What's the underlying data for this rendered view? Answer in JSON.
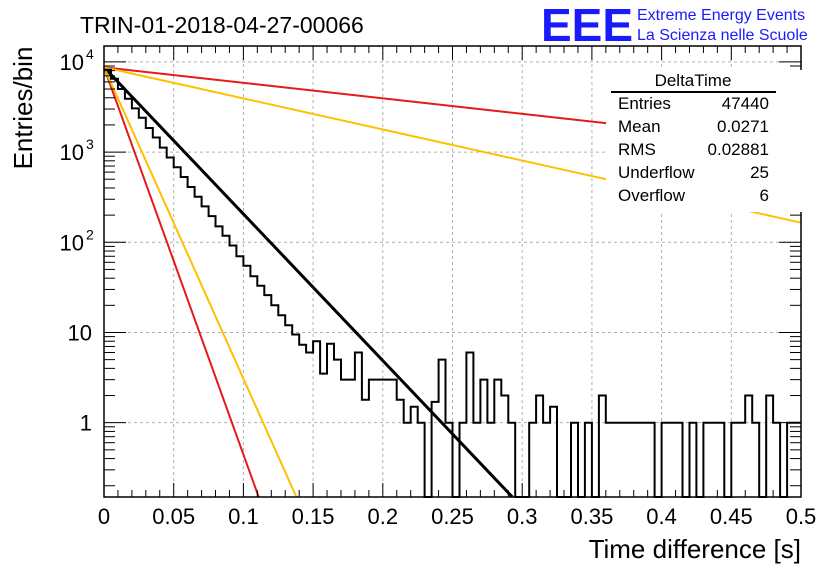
{
  "chart_data": {
    "type": "line",
    "title": "TRIN-01-2018-04-27-00066",
    "xlabel": "Time difference [s]",
    "ylabel": "Entries/bin",
    "xlim": [
      0,
      0.5
    ],
    "ylim": [
      0.15,
      15000
    ],
    "yscale": "log",
    "grid": true,
    "x_ticks": [
      "0",
      "0.05",
      "0.1",
      "0.15",
      "0.2",
      "0.25",
      "0.3",
      "0.35",
      "0.4",
      "0.45",
      "0.5"
    ],
    "y_ticks": [
      {
        "value": 10000,
        "label": "10",
        "exp": "4"
      },
      {
        "value": 1000,
        "label": "10",
        "exp": "3"
      },
      {
        "value": 100,
        "label": "10",
        "exp": "2"
      },
      {
        "value": 10,
        "label": "10",
        "exp": ""
      },
      {
        "value": 1,
        "label": "1",
        "exp": ""
      }
    ],
    "histogram": {
      "bin_width": 0.005,
      "values": [
        8200,
        6500,
        5000,
        3900,
        3050,
        2400,
        1850,
        1450,
        1120,
        870,
        680,
        530,
        410,
        320,
        250,
        195,
        150,
        118,
        92,
        70,
        55,
        42,
        33,
        26,
        20,
        15.5,
        12,
        9.5,
        7.3,
        6,
        8,
        3.5,
        7.5,
        5,
        3,
        3,
        6,
        1.8,
        3,
        3,
        3,
        3,
        1.8,
        1,
        1.5,
        1,
        0,
        1.7,
        5,
        1,
        0,
        1,
        6,
        1,
        3,
        1,
        3,
        2,
        1,
        0,
        0,
        1,
        2,
        1,
        1.5,
        0,
        0,
        1,
        0,
        1,
        0,
        2,
        1,
        1,
        1,
        1,
        1,
        1,
        1,
        0,
        1,
        1,
        1,
        0,
        1,
        0,
        1,
        1,
        1,
        0,
        1,
        1,
        2,
        1,
        0,
        2,
        1,
        0,
        1,
        1
      ]
    },
    "series": [
      {
        "x": [
          0,
          0.293
        ],
        "y": [
          8700,
          0.15
        ],
        "color": "#000000"
      },
      {
        "x": [
          0,
          0.111
        ],
        "y": [
          8700,
          0.15
        ],
        "color": "#e41a1c"
      },
      {
        "x": [
          0,
          0.138
        ],
        "y": [
          8700,
          0.15
        ],
        "color": "#ffc000"
      },
      {
        "x": [
          0,
          0.5
        ],
        "y": [
          8700,
          1200
        ],
        "color": "#e41a1c"
      },
      {
        "x": [
          0,
          0.5
        ],
        "y": [
          8700,
          165
        ],
        "color": "#ffc000"
      }
    ],
    "stats": {
      "title": "DeltaTime",
      "rows": [
        {
          "label": "Entries",
          "value": "47440"
        },
        {
          "label": "Mean",
          "value": "0.0271"
        },
        {
          "label": "RMS",
          "value": "0.02881"
        },
        {
          "label": "Underflow",
          "value": "25"
        },
        {
          "label": "Overflow",
          "value": "6"
        }
      ]
    }
  },
  "logo": {
    "mark": "EEE",
    "line1": "Extreme Energy Events",
    "line2": "La Scienza nelle Scuole",
    "color": "#1a1aff"
  }
}
